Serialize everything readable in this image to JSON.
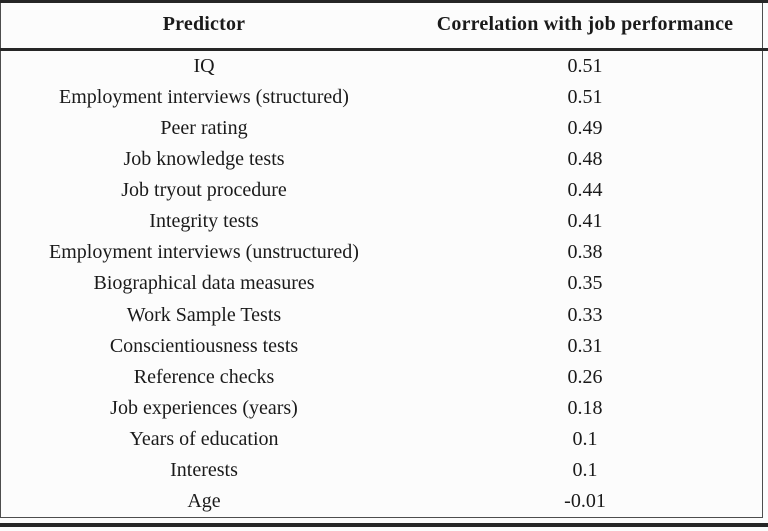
{
  "table": {
    "columns": [
      {
        "label": "Predictor"
      },
      {
        "label": "Correlation with job performance"
      }
    ],
    "rows": [
      {
        "predictor": "IQ",
        "correlation": "0.51"
      },
      {
        "predictor": "Employment interviews (structured)",
        "correlation": "0.51"
      },
      {
        "predictor": "Peer rating",
        "correlation": "0.49"
      },
      {
        "predictor": "Job knowledge tests",
        "correlation": "0.48"
      },
      {
        "predictor": "Job tryout procedure",
        "correlation": "0.44"
      },
      {
        "predictor": "Integrity tests",
        "correlation": "0.41"
      },
      {
        "predictor": "Employment interviews (unstructured)",
        "correlation": "0.38"
      },
      {
        "predictor": "Biographical data measures",
        "correlation": "0.35"
      },
      {
        "predictor": "Work Sample Tests",
        "correlation": "0.33"
      },
      {
        "predictor": "Conscientiousness tests",
        "correlation": "0.31"
      },
      {
        "predictor": "Reference checks",
        "correlation": "0.26"
      },
      {
        "predictor": "Job experiences (years)",
        "correlation": "0.18"
      },
      {
        "predictor": "Years of education",
        "correlation": "0.1"
      },
      {
        "predictor": "Interests",
        "correlation": "0.1"
      },
      {
        "predictor": "Age",
        "correlation": "-0.01"
      }
    ]
  },
  "colors": {
    "text": "#1a1a1a",
    "heavy_rule": "#262626",
    "thin_border": "#4d4d4d",
    "background": "#fcfcfc"
  }
}
